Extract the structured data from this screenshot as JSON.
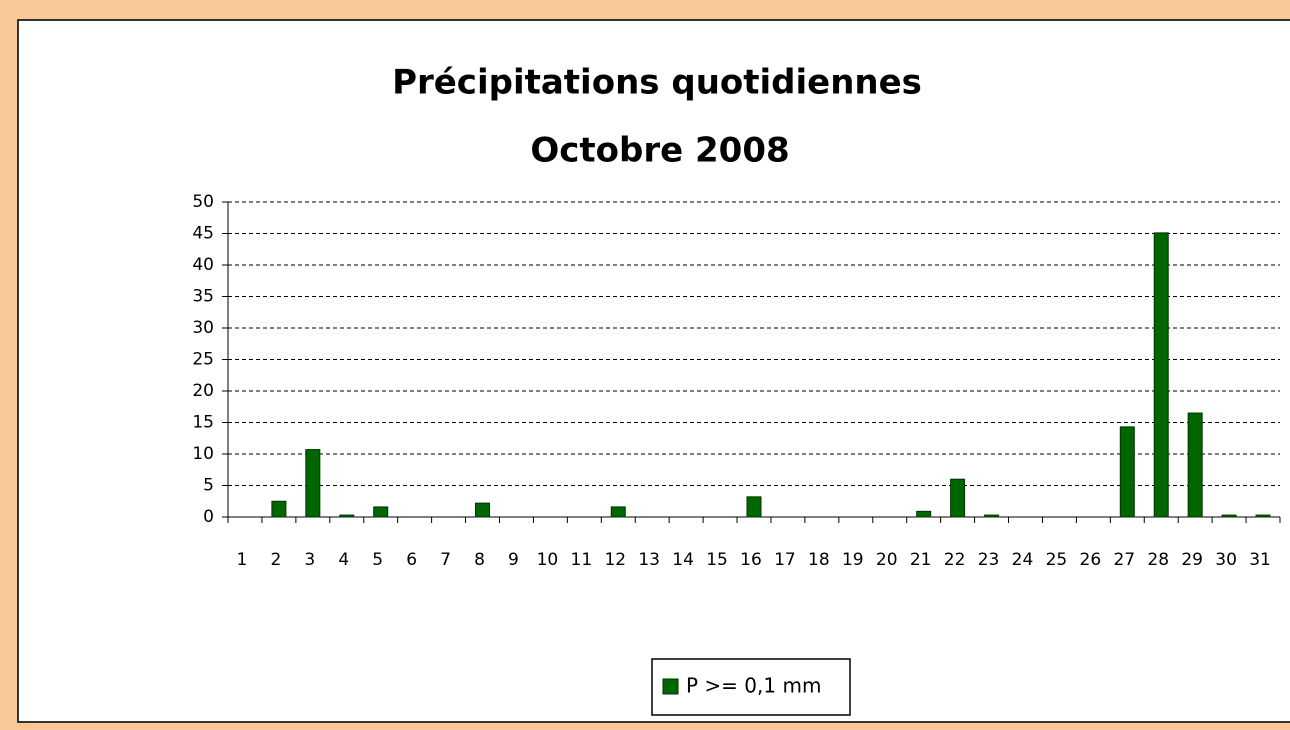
{
  "chart_data": {
    "type": "bar",
    "title": "Précipitations quotidiennes",
    "subtitle": "Octobre 2008",
    "categories": [
      "1",
      "2",
      "3",
      "4",
      "5",
      "6",
      "7",
      "8",
      "9",
      "10",
      "11",
      "12",
      "13",
      "14",
      "15",
      "16",
      "17",
      "18",
      "19",
      "20",
      "21",
      "22",
      "23",
      "24",
      "25",
      "26",
      "27",
      "28",
      "29",
      "30",
      "31"
    ],
    "series": [
      {
        "name": "P >= 0,1 mm",
        "color": "#006600",
        "values": [
          0,
          2.5,
          10.7,
          0.3,
          1.6,
          0,
          0,
          2.2,
          0,
          0,
          0,
          1.6,
          0,
          0,
          0,
          3.2,
          0,
          0,
          0,
          0,
          0.9,
          6.0,
          0.3,
          0,
          0,
          0,
          14.3,
          45.1,
          16.5,
          0.3,
          0.3
        ]
      }
    ],
    "ylim": [
      0,
      50
    ],
    "yticks": [
      0,
      5,
      10,
      15,
      20,
      25,
      30,
      35,
      40,
      45,
      50
    ],
    "grid": true,
    "legend": "bottom"
  }
}
